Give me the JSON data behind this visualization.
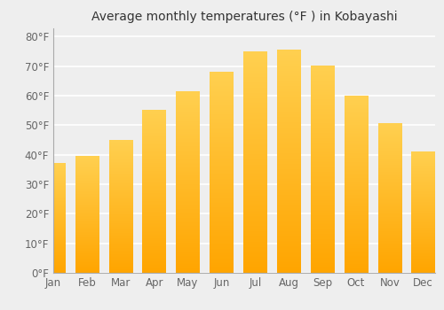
{
  "title": "Average monthly temperatures (°F ) in Kobayashi",
  "months": [
    "Jan",
    "Feb",
    "Mar",
    "Apr",
    "May",
    "Jun",
    "Jul",
    "Aug",
    "Sep",
    "Oct",
    "Nov",
    "Dec"
  ],
  "values": [
    37,
    39.5,
    45,
    55,
    61.5,
    68,
    75,
    75.5,
    70,
    60,
    50.5,
    41
  ],
  "bar_color_main": "#FFA500",
  "bar_color_light": "#FFD04A",
  "yticks": [
    0,
    10,
    20,
    30,
    40,
    50,
    60,
    70,
    80
  ],
  "ylim": [
    0,
    83
  ],
  "background_color": "#eeeeee",
  "grid_color": "#ffffff",
  "title_fontsize": 10,
  "tick_fontsize": 8.5
}
